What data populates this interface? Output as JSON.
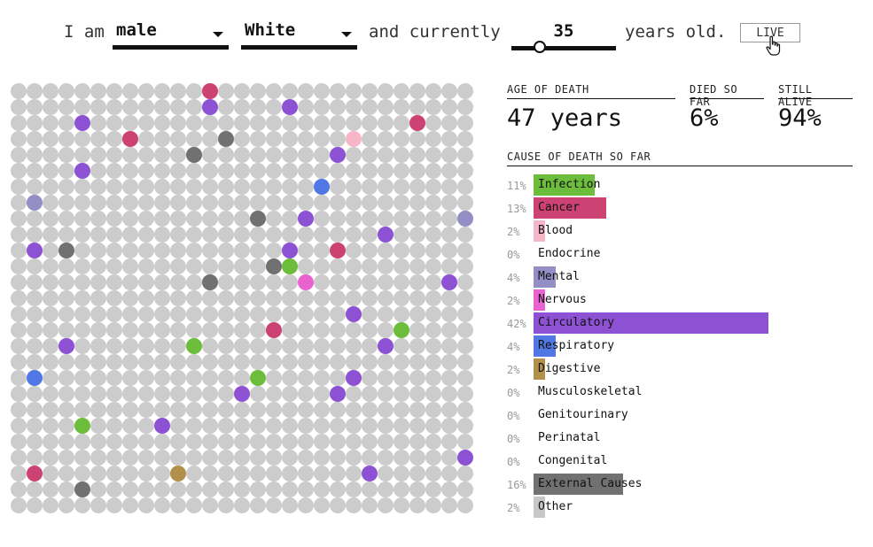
{
  "header": {
    "prefix": "I am",
    "sex_value": "male",
    "race_value": "White",
    "middle": "and currently",
    "age_value": "35",
    "age_slider_fraction": 0.27,
    "suffix": "years old.",
    "live_label": "LIVE"
  },
  "stats": {
    "age_of_death_label": "AGE OF DEATH",
    "age_of_death_value": "47 years",
    "died_label": "DIED SO FAR",
    "died_value": "6%",
    "alive_label": "STILL ALIVE",
    "alive_value": "94%"
  },
  "cause_title": "CAUSE OF DEATH SO FAR",
  "causes": [
    {
      "pct": "11%",
      "name": "Infection",
      "value": 11,
      "color": "#6cbd3c"
    },
    {
      "pct": "13%",
      "name": "Cancer",
      "value": 13,
      "color": "#cc4272"
    },
    {
      "pct": "2%",
      "name": "Blood",
      "value": 2,
      "color": "#f7b6c8"
    },
    {
      "pct": "0%",
      "name": "Endocrine",
      "value": 0,
      "color": "#cccccc"
    },
    {
      "pct": "4%",
      "name": "Mental",
      "value": 4,
      "color": "#938fc4"
    },
    {
      "pct": "2%",
      "name": "Nervous",
      "value": 2,
      "color": "#ea62cf"
    },
    {
      "pct": "42%",
      "name": "Circulatory",
      "value": 42,
      "color": "#8d52d4"
    },
    {
      "pct": "4%",
      "name": "Respiratory",
      "value": 4,
      "color": "#5077e4"
    },
    {
      "pct": "2%",
      "name": "Digestive",
      "value": 2,
      "color": "#b38f4c"
    },
    {
      "pct": "0%",
      "name": "Musculoskeletal",
      "value": 0,
      "color": "#cccccc"
    },
    {
      "pct": "0%",
      "name": "Genitourinary",
      "value": 0,
      "color": "#cccccc"
    },
    {
      "pct": "0%",
      "name": "Perinatal",
      "value": 0,
      "color": "#cccccc"
    },
    {
      "pct": "0%",
      "name": "Congenital",
      "value": 0,
      "color": "#cccccc"
    },
    {
      "pct": "16%",
      "name": "External Causes",
      "value": 16,
      "color": "#717171"
    },
    {
      "pct": "2%",
      "name": "Other",
      "value": 2,
      "color": "#c7c7c7"
    }
  ],
  "grid": {
    "cols": 29,
    "rows": 27,
    "alive_color": "#cccccc",
    "dead": [
      {
        "row": 0,
        "col": 12,
        "cause": "Cancer"
      },
      {
        "row": 1,
        "col": 12,
        "cause": "Circulatory"
      },
      {
        "row": 1,
        "col": 17,
        "cause": "Circulatory"
      },
      {
        "row": 2,
        "col": 4,
        "cause": "Circulatory"
      },
      {
        "row": 2,
        "col": 25,
        "cause": "Cancer"
      },
      {
        "row": 3,
        "col": 7,
        "cause": "Cancer"
      },
      {
        "row": 3,
        "col": 13,
        "cause": "External Causes"
      },
      {
        "row": 3,
        "col": 21,
        "cause": "Blood"
      },
      {
        "row": 4,
        "col": 11,
        "cause": "External Causes"
      },
      {
        "row": 4,
        "col": 20,
        "cause": "Circulatory"
      },
      {
        "row": 5,
        "col": 4,
        "cause": "Circulatory"
      },
      {
        "row": 6,
        "col": 19,
        "cause": "Respiratory"
      },
      {
        "row": 7,
        "col": 1,
        "cause": "Mental"
      },
      {
        "row": 8,
        "col": 15,
        "cause": "External Causes"
      },
      {
        "row": 8,
        "col": 18,
        "cause": "Circulatory"
      },
      {
        "row": 8,
        "col": 28,
        "cause": "Mental"
      },
      {
        "row": 9,
        "col": 23,
        "cause": "Circulatory"
      },
      {
        "row": 10,
        "col": 1,
        "cause": "Circulatory"
      },
      {
        "row": 10,
        "col": 3,
        "cause": "External Causes"
      },
      {
        "row": 10,
        "col": 17,
        "cause": "Circulatory"
      },
      {
        "row": 10,
        "col": 20,
        "cause": "Cancer"
      },
      {
        "row": 11,
        "col": 16,
        "cause": "External Causes"
      },
      {
        "row": 11,
        "col": 17,
        "cause": "Infection"
      },
      {
        "row": 12,
        "col": 12,
        "cause": "External Causes"
      },
      {
        "row": 12,
        "col": 18,
        "cause": "Nervous"
      },
      {
        "row": 12,
        "col": 27,
        "cause": "Circulatory"
      },
      {
        "row": 14,
        "col": 21,
        "cause": "Circulatory"
      },
      {
        "row": 15,
        "col": 16,
        "cause": "Cancer"
      },
      {
        "row": 15,
        "col": 24,
        "cause": "Infection"
      },
      {
        "row": 16,
        "col": 3,
        "cause": "Circulatory"
      },
      {
        "row": 16,
        "col": 11,
        "cause": "Infection"
      },
      {
        "row": 16,
        "col": 23,
        "cause": "Circulatory"
      },
      {
        "row": 18,
        "col": 1,
        "cause": "Respiratory"
      },
      {
        "row": 18,
        "col": 15,
        "cause": "Infection"
      },
      {
        "row": 18,
        "col": 21,
        "cause": "Circulatory"
      },
      {
        "row": 19,
        "col": 14,
        "cause": "Circulatory"
      },
      {
        "row": 19,
        "col": 20,
        "cause": "Circulatory"
      },
      {
        "row": 21,
        "col": 4,
        "cause": "Infection"
      },
      {
        "row": 21,
        "col": 9,
        "cause": "Circulatory"
      },
      {
        "row": 23,
        "col": 28,
        "cause": "Circulatory"
      },
      {
        "row": 24,
        "col": 1,
        "cause": "Cancer"
      },
      {
        "row": 24,
        "col": 10,
        "cause": "Digestive"
      },
      {
        "row": 24,
        "col": 22,
        "cause": "Circulatory"
      },
      {
        "row": 25,
        "col": 4,
        "cause": "External Causes"
      }
    ]
  }
}
